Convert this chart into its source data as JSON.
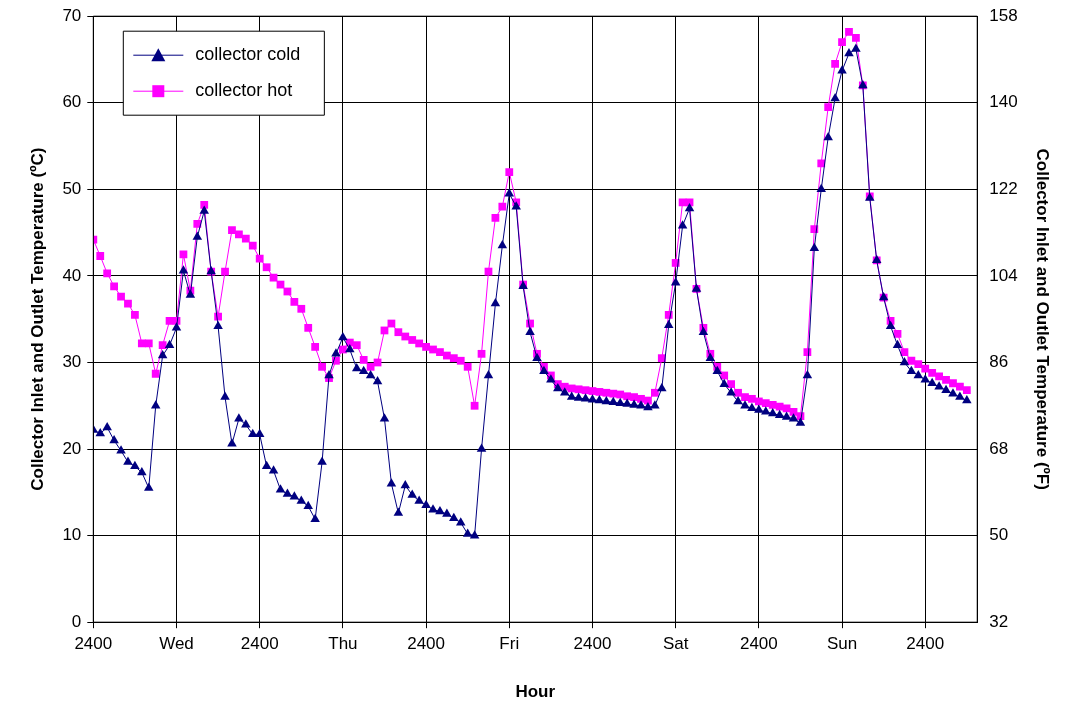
{
  "chart_data": {
    "type": "line",
    "xlabel": "Hour",
    "ylabel": "Collector Inlet and Outlet Temperature (ºC)",
    "y2label": "Collector Inlet and Outlet Temperature (ºF)",
    "categories": [
      "2400",
      null,
      null,
      null,
      null,
      null,
      null,
      null,
      null,
      null,
      null,
      null,
      "Wed",
      null,
      null,
      null,
      null,
      null,
      null,
      null,
      null,
      null,
      null,
      null,
      "2400",
      null,
      null,
      null,
      null,
      null,
      null,
      null,
      null,
      null,
      null,
      null,
      "Thu",
      null,
      null,
      null,
      null,
      null,
      null,
      null,
      null,
      null,
      null,
      null,
      "2400",
      null,
      null,
      null,
      null,
      null,
      null,
      null,
      null,
      null,
      null,
      null,
      "Fri",
      null,
      null,
      null,
      null,
      null,
      null,
      null,
      null,
      null,
      null,
      null,
      "2400",
      null,
      null,
      null,
      null,
      null,
      null,
      null,
      null,
      null,
      null,
      null,
      "Sat",
      null,
      null,
      null,
      null,
      null,
      null,
      null,
      null,
      null,
      null,
      null,
      "2400",
      null,
      null,
      null,
      null,
      null,
      null,
      null,
      null,
      null,
      null,
      null,
      "Sun",
      null,
      null,
      null,
      null,
      null,
      null,
      null,
      null,
      null,
      null,
      null,
      "2400",
      null,
      null,
      null,
      null,
      null,
      null
    ],
    "series": [
      {
        "name": "collector cold",
        "color": "#000080",
        "marker": "triangle",
        "values": [
          22.2,
          21.8,
          22.5,
          21,
          19.8,
          18.5,
          18,
          17.3,
          15.5,
          25,
          30.8,
          32,
          34,
          40.6,
          37.8,
          44.5,
          47.5,
          40.5,
          34.2,
          26,
          20.6,
          23.5,
          22.8,
          21.7,
          21.7,
          18,
          17.5,
          15.3,
          14.8,
          14.5,
          14,
          13.4,
          11.9,
          18.5,
          28.5,
          31,
          32.9,
          31.5,
          29.3,
          29,
          28.5,
          27.8,
          23.5,
          16,
          12.6,
          15.8,
          14.7,
          14,
          13.5,
          13,
          12.8,
          12.5,
          12,
          11.5,
          10.2,
          10,
          20,
          28.5,
          36.8,
          43.5,
          49.5,
          48,
          38.8,
          33.5,
          30.5,
          29,
          28,
          27,
          26.5,
          26,
          25.9,
          25.8,
          25.7,
          25.6,
          25.5,
          25.4,
          25.3,
          25.2,
          25.1,
          25,
          24.8,
          25,
          27,
          34.3,
          39.2,
          45.8,
          47.8,
          38.5,
          33.5,
          30.5,
          29,
          27.5,
          26.5,
          25.5,
          25,
          24.7,
          24.5,
          24.3,
          24.1,
          23.9,
          23.7,
          23.5,
          23,
          28.5,
          43.2,
          50,
          56,
          60.5,
          63.7,
          65.7,
          66.2,
          62,
          49,
          41.8,
          37.5,
          34.2,
          32,
          30,
          29,
          28.5,
          28,
          27.6,
          27.2,
          26.8,
          26.4,
          26,
          25.6
        ]
      },
      {
        "name": "collector hot",
        "color": "#ff00ff",
        "marker": "square",
        "values": [
          44.2,
          42.3,
          40.3,
          38.8,
          37.6,
          36.8,
          35.5,
          32.2,
          32.2,
          28.7,
          32,
          34.8,
          34.8,
          42.5,
          38.3,
          46,
          48.2,
          40.5,
          35.3,
          40.5,
          45.3,
          44.8,
          44.3,
          43.5,
          42,
          41,
          39.8,
          39,
          38.2,
          37,
          36.2,
          34,
          31.8,
          29.5,
          28.2,
          30.2,
          31.5,
          32.3,
          32,
          30.3,
          29.5,
          30,
          33.7,
          34.5,
          33.5,
          33,
          32.6,
          32.2,
          31.8,
          31.5,
          31.2,
          30.8,
          30.5,
          30.2,
          29.5,
          25,
          31,
          40.5,
          46.7,
          48,
          52,
          48.5,
          39,
          34.5,
          31,
          29.5,
          28.5,
          27.5,
          27.2,
          27,
          26.9,
          26.8,
          26.7,
          26.6,
          26.5,
          26.4,
          26.3,
          26.1,
          26,
          25.8,
          25.6,
          26.5,
          30.5,
          35.5,
          41.5,
          48.5,
          48.5,
          38.5,
          34,
          31,
          29.5,
          28.5,
          27.5,
          26.5,
          26,
          25.8,
          25.5,
          25.3,
          25.1,
          24.9,
          24.7,
          24.3,
          23.8,
          31.2,
          45.4,
          53,
          59.5,
          64.5,
          67,
          68.2,
          67.5,
          62,
          49.2,
          41.8,
          37.5,
          34.8,
          33.3,
          31.2,
          30.2,
          29.8,
          29.3,
          28.8,
          28.4,
          28,
          27.6,
          27.2,
          26.8
        ]
      }
    ],
    "ylim": [
      0,
      70
    ],
    "yticks": [
      0,
      10,
      20,
      30,
      40,
      50,
      60,
      70
    ],
    "y2lim": [
      32,
      158
    ],
    "y2ticks": [
      32,
      50,
      68,
      86,
      104,
      122,
      140,
      158
    ],
    "grid": true,
    "line_style": "solid",
    "legend": "top left"
  }
}
